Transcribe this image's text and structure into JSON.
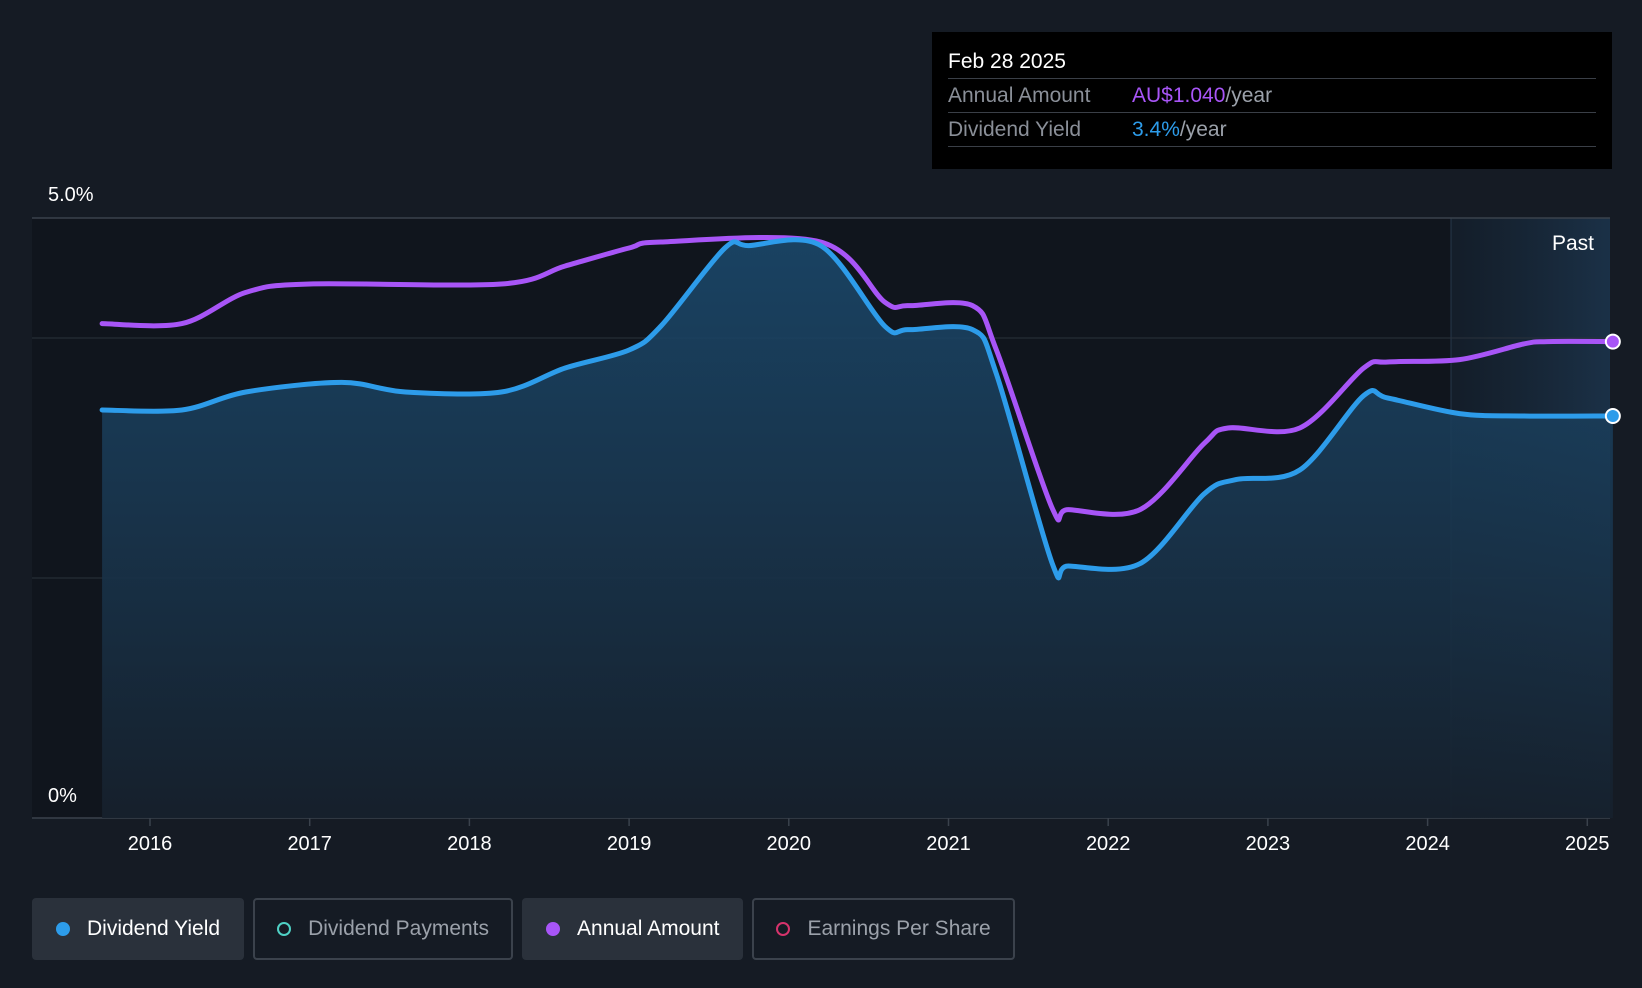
{
  "colors": {
    "background": "#151b24",
    "dividend_yield": "#2d9cea",
    "annual_amount": "#a855f7",
    "dividend_payments": "#4fd1c5",
    "earnings_per_share": "#d6336c"
  },
  "tooltip": {
    "date": "Feb 28 2025",
    "annual_amount_label": "Annual Amount",
    "annual_amount_value": "AU$1.040",
    "annual_amount_unit": "/year",
    "dividend_yield_label": "Dividend Yield",
    "dividend_yield_value": "3.4%",
    "dividend_yield_unit": "/year"
  },
  "legend": [
    {
      "label": "Dividend Yield",
      "active": true,
      "icon": "filled-dot"
    },
    {
      "label": "Dividend Payments",
      "active": false,
      "icon": "hollow-dot"
    },
    {
      "label": "Annual Amount",
      "active": true,
      "icon": "filled-dot"
    },
    {
      "label": "Earnings Per Share",
      "active": false,
      "icon": "hollow-dot"
    }
  ],
  "chart_data": {
    "type": "area",
    "title": "",
    "xlabel": "",
    "ylabel": "",
    "ylim": [
      0,
      5.0
    ],
    "y_tick_labels": [
      "5.0%",
      "0%"
    ],
    "x_tick_labels": [
      "2016",
      "2017",
      "2018",
      "2019",
      "2020",
      "2021",
      "2022",
      "2023",
      "2024",
      "2025"
    ],
    "past_label": "Past",
    "grid": true,
    "series": [
      {
        "name": "Dividend Yield",
        "points": [
          [
            2015.7,
            3.4
          ],
          [
            2016.2,
            3.4
          ],
          [
            2016.6,
            3.55
          ],
          [
            2017.2,
            3.63
          ],
          [
            2017.6,
            3.55
          ],
          [
            2018.2,
            3.55
          ],
          [
            2018.6,
            3.75
          ],
          [
            2019.0,
            3.9
          ],
          [
            2019.2,
            4.1
          ],
          [
            2019.6,
            4.75
          ],
          [
            2019.75,
            4.77
          ],
          [
            2020.2,
            4.77
          ],
          [
            2020.6,
            4.1
          ],
          [
            2020.75,
            4.07
          ],
          [
            2021.15,
            4.07
          ],
          [
            2021.3,
            3.7
          ],
          [
            2021.65,
            2.12
          ],
          [
            2021.75,
            2.1
          ],
          [
            2022.2,
            2.12
          ],
          [
            2022.6,
            2.7
          ],
          [
            2022.8,
            2.82
          ],
          [
            2023.2,
            2.9
          ],
          [
            2023.6,
            3.52
          ],
          [
            2023.75,
            3.5
          ],
          [
            2024.2,
            3.37
          ],
          [
            2024.6,
            3.35
          ],
          [
            2025.16,
            3.35
          ]
        ]
      },
      {
        "name": "Annual Amount",
        "points": [
          [
            2015.7,
            4.12
          ],
          [
            2016.2,
            4.12
          ],
          [
            2016.6,
            4.38
          ],
          [
            2017.0,
            4.45
          ],
          [
            2018.2,
            4.45
          ],
          [
            2018.6,
            4.6
          ],
          [
            2019.0,
            4.75
          ],
          [
            2019.2,
            4.8
          ],
          [
            2020.2,
            4.8
          ],
          [
            2020.6,
            4.3
          ],
          [
            2020.75,
            4.27
          ],
          [
            2021.15,
            4.27
          ],
          [
            2021.3,
            3.9
          ],
          [
            2021.65,
            2.58
          ],
          [
            2021.75,
            2.57
          ],
          [
            2022.2,
            2.57
          ],
          [
            2022.6,
            3.12
          ],
          [
            2022.75,
            3.25
          ],
          [
            2023.2,
            3.25
          ],
          [
            2023.6,
            3.75
          ],
          [
            2023.75,
            3.8
          ],
          [
            2024.2,
            3.82
          ],
          [
            2024.6,
            3.95
          ],
          [
            2024.75,
            3.97
          ],
          [
            2025.16,
            3.97
          ]
        ]
      }
    ]
  }
}
